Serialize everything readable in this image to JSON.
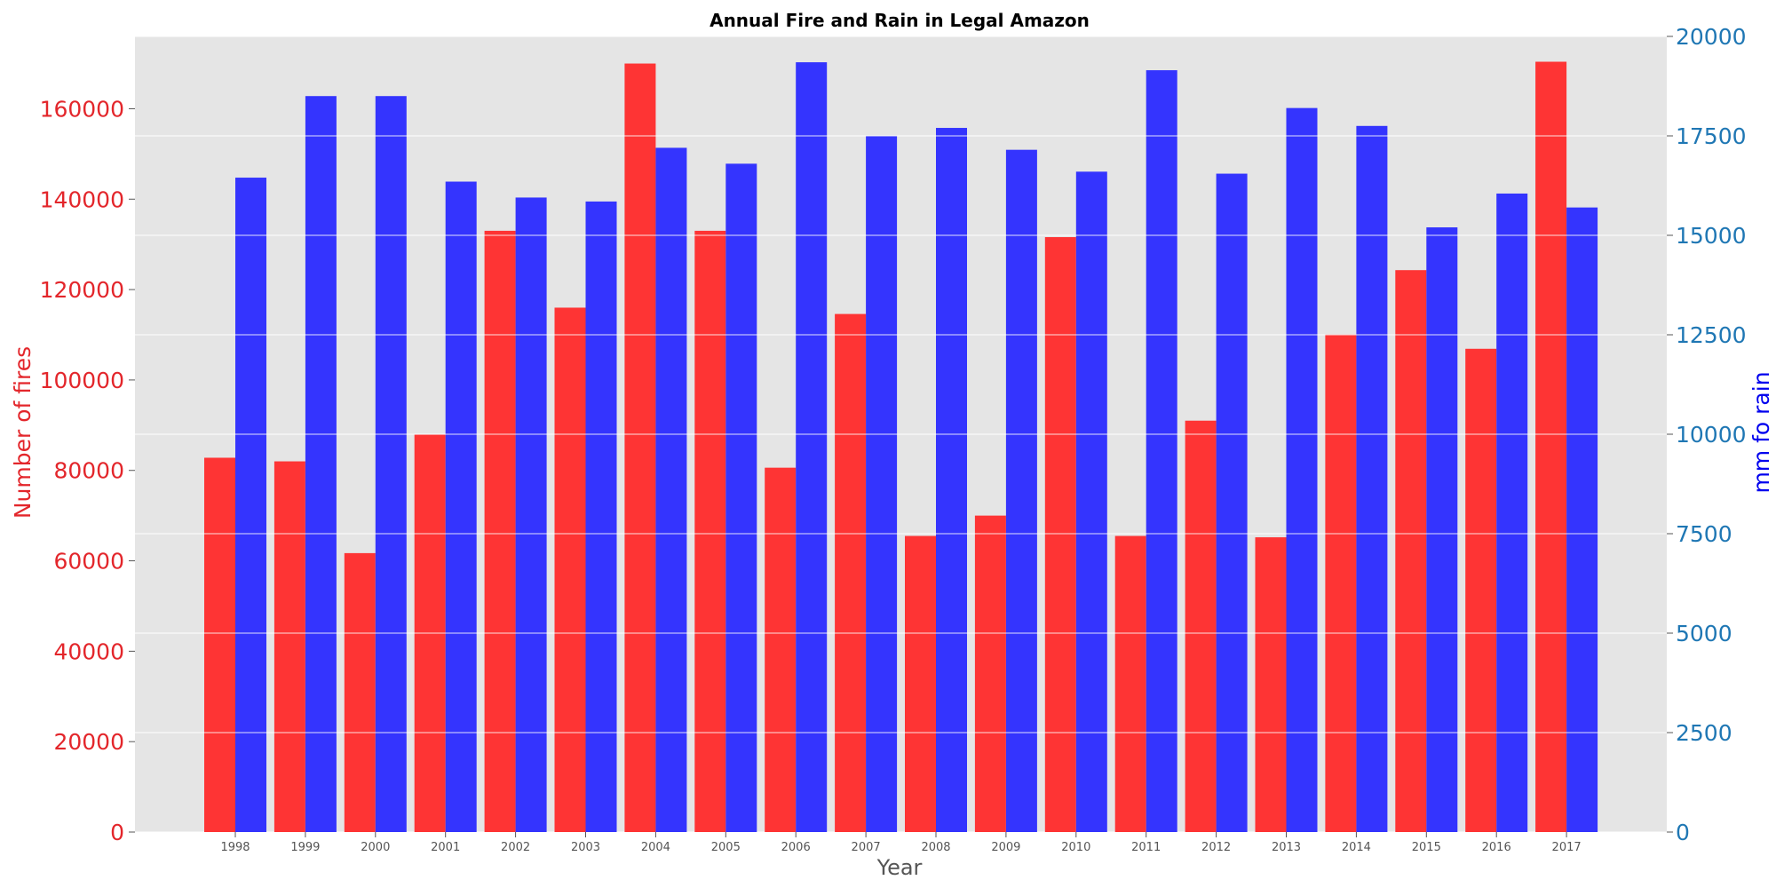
{
  "chart_data": {
    "type": "bar",
    "title": "Annual Fire and Rain in Legal Amazon",
    "xlabel": "Year",
    "ylabel_left": "Number of fires",
    "ylabel_right": "mm fo rain",
    "categories": [
      "1998",
      "1999",
      "2000",
      "2001",
      "2002",
      "2003",
      "2004",
      "2005",
      "2006",
      "2007",
      "2008",
      "2009",
      "2010",
      "2011",
      "2012",
      "2013",
      "2014",
      "2015",
      "2016",
      "2017"
    ],
    "series": [
      {
        "axis": "left",
        "color": "#ff2a2a",
        "values": [
          82800,
          82000,
          61700,
          87900,
          133000,
          116000,
          170000,
          133000,
          80600,
          114600,
          65500,
          70000,
          131600,
          65500,
          91000,
          65200,
          110100,
          124300,
          106900,
          170400
        ]
      },
      {
        "axis": "right",
        "color": "#2a2aff",
        "values": [
          16450,
          18500,
          18500,
          16350,
          15950,
          15850,
          17200,
          16800,
          19350,
          17500,
          17700,
          17150,
          16600,
          19150,
          16550,
          18200,
          17750,
          15200,
          16050,
          15700
        ]
      }
    ],
    "ylim_left": [
      0,
      176000
    ],
    "ylim_right": [
      0,
      20000
    ],
    "yticks_left": [
      "0",
      "20000",
      "40000",
      "60000",
      "80000",
      "100000",
      "120000",
      "140000",
      "160000"
    ],
    "yticks_right": [
      "0",
      "2500",
      "5000",
      "7500",
      "10000",
      "12500",
      "15000",
      "17500",
      "20000"
    ],
    "grid": true,
    "background": "#e5e5e5",
    "left_axis_color": "#e3262b",
    "right_axis_color": "#1f77b4"
  }
}
